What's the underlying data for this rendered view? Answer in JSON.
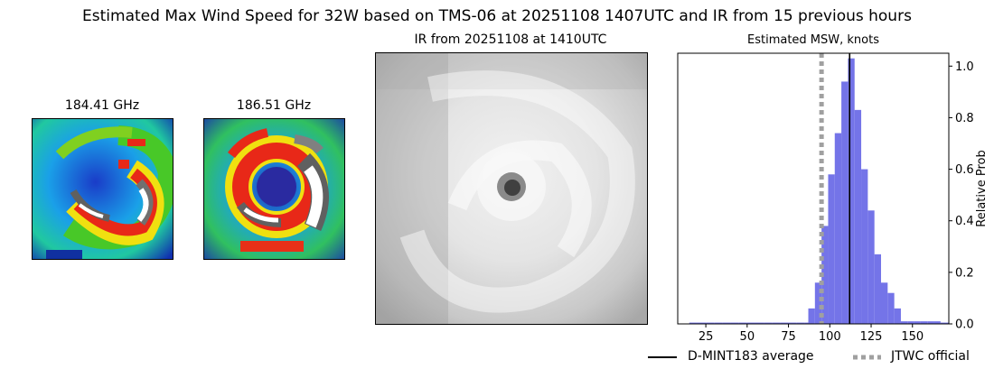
{
  "figure": {
    "title": "Estimated Max Wind Speed for 32W based on TMS-06 at 20251108 1407UTC and IR from 15 previous hours"
  },
  "panels": {
    "mw1": {
      "title": "184.41 GHz"
    },
    "mw2": {
      "title": "186.51 GHz"
    },
    "ir": {
      "title": "IR from 20251108 at 1410UTC"
    }
  },
  "chart_data": {
    "type": "bar",
    "title": "Estimated MSW, knots",
    "xlabel": "",
    "ylabel": "Relative Prob",
    "xlim": [
      8,
      172
    ],
    "ylim": [
      0,
      1.05
    ],
    "xticks": [
      25,
      50,
      75,
      100,
      125,
      150
    ],
    "yticks": [
      0.0,
      0.2,
      0.4,
      0.6,
      0.8,
      1.0
    ],
    "bin_width": 5,
    "bin_starts": [
      15,
      20,
      25,
      30,
      35,
      40,
      45,
      50,
      55,
      60,
      65,
      70,
      75,
      80,
      85,
      87,
      91,
      95,
      99,
      103,
      107,
      111,
      115,
      119,
      123,
      127,
      131,
      135,
      139,
      143,
      147,
      151,
      155,
      159,
      163,
      167
    ],
    "values": [
      0.005,
      0.005,
      0.005,
      0.005,
      0.005,
      0.005,
      0.005,
      0.005,
      0.005,
      0.005,
      0.005,
      0.005,
      0.005,
      0.005,
      0.005,
      0.06,
      0.16,
      0.38,
      0.58,
      0.74,
      0.94,
      1.03,
      0.83,
      0.6,
      0.44,
      0.27,
      0.16,
      0.12,
      0.06,
      0.01,
      0.01,
      0.01,
      0.01,
      0.01,
      0.01,
      0.005
    ],
    "bar_color": "#7474e8",
    "lines": [
      {
        "name": "D-MINT183 average",
        "x": 112,
        "color": "#000000",
        "style": "solid"
      },
      {
        "name": "JTWC official",
        "x": 95,
        "color": "#a0a0a0",
        "style": "dotted"
      }
    ],
    "legend_position": "bottom-right"
  }
}
